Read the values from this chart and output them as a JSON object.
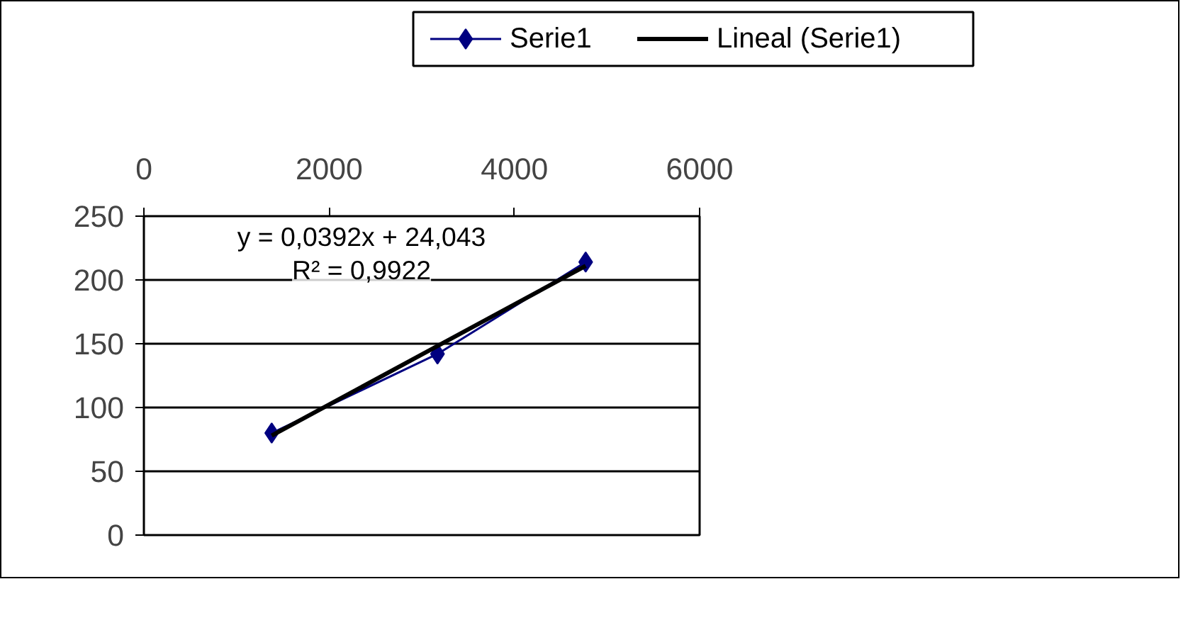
{
  "chart_data": {
    "type": "line",
    "x": [
      1380,
      3170,
      4770
    ],
    "series": [
      {
        "name": "Serie1",
        "color": "#000080",
        "values": [
          80,
          142,
          214
        ],
        "marker": "diamond"
      },
      {
        "name": "Lineal (Serie1)",
        "color": "#000000",
        "type": "line",
        "x": [
          1380,
          4770
        ],
        "values": [
          78,
          211
        ],
        "marker": "none"
      }
    ],
    "annotations": [
      "y = 0,0392x + 24,043",
      "R² = 0,9922"
    ],
    "xlim": [
      0,
      6000
    ],
    "xticks": [
      0,
      2000,
      4000,
      6000
    ],
    "ylim": [
      0,
      250
    ],
    "yticks": [
      0,
      50,
      100,
      150,
      200,
      250
    ],
    "grid": "y",
    "legend": "top",
    "line_style": "solid"
  }
}
